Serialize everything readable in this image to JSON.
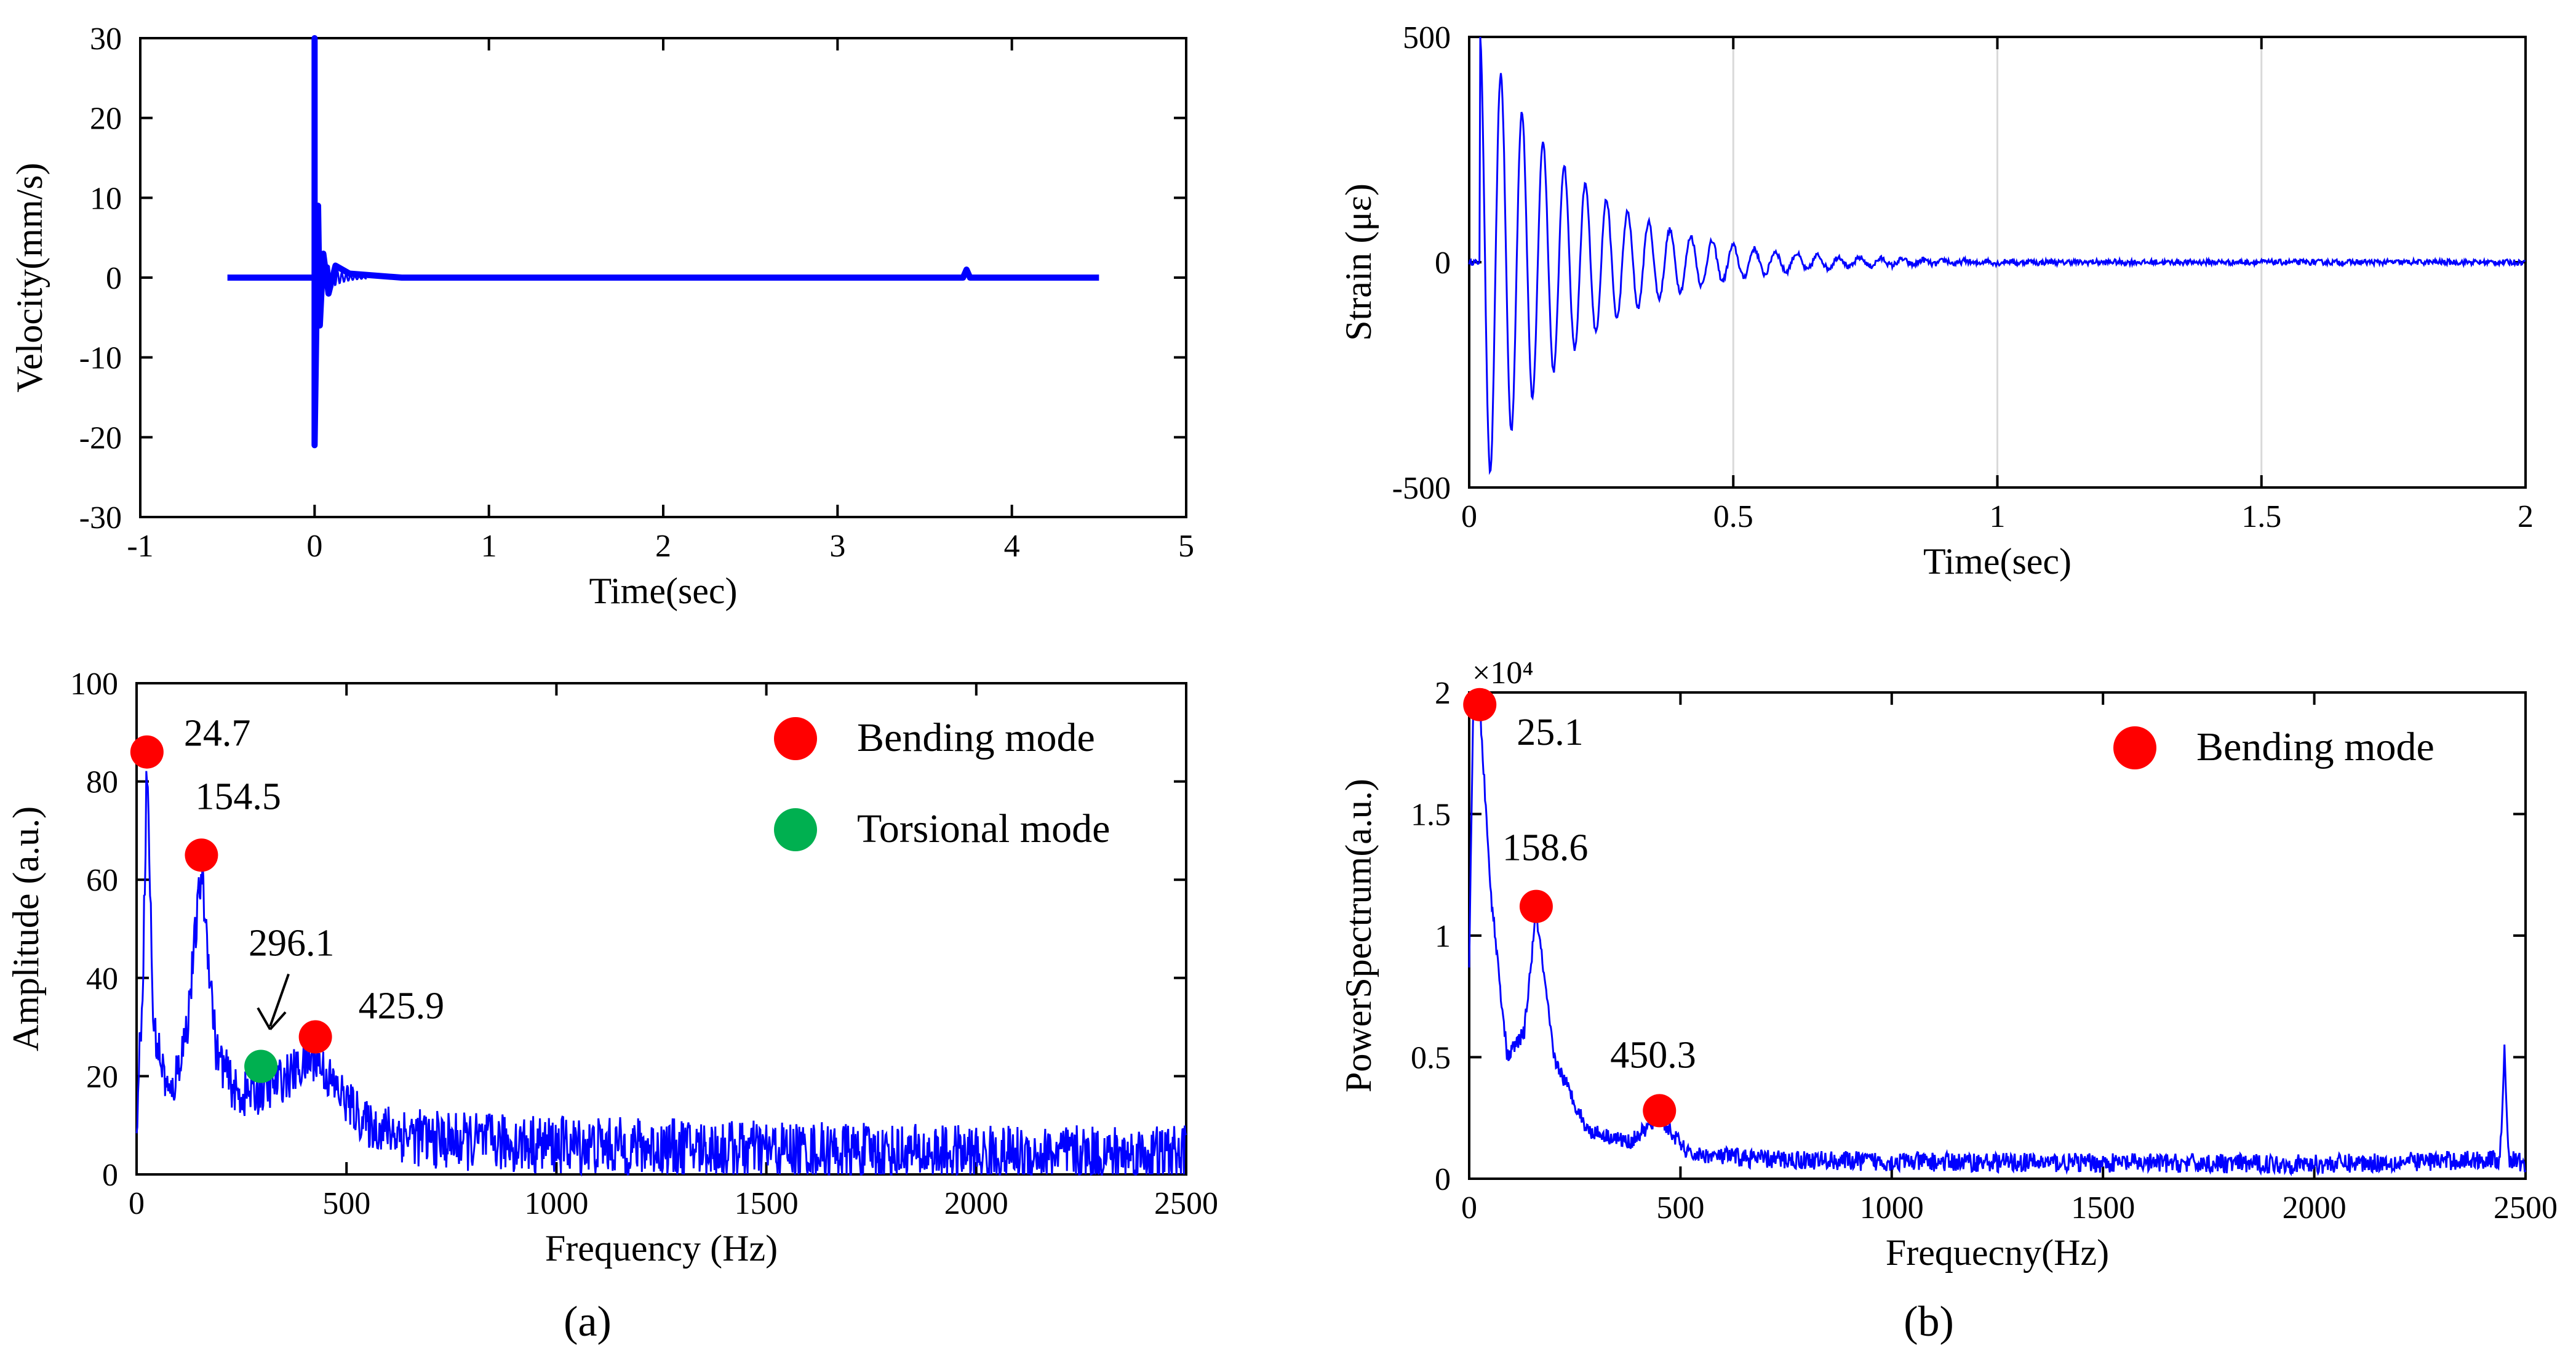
{
  "colors": {
    "series": "#0000ff",
    "bending": "#ff0000",
    "torsional": "#00b050",
    "axis": "#000000",
    "grid": "#d9d9d9"
  },
  "captions": {
    "a": "(a)",
    "b": "(b)"
  },
  "chart_data": [
    {
      "id": "velocity",
      "type": "line",
      "title": "",
      "xlabel": "Time(sec)",
      "ylabel": "Velocity(mm/s)",
      "xlim": [
        -1,
        5
      ],
      "ylim": [
        -30,
        30
      ],
      "xticks": [
        -1,
        0,
        1,
        2,
        3,
        4,
        5
      ],
      "yticks": [
        -30,
        -20,
        -10,
        0,
        10,
        20,
        30
      ],
      "grid": false,
      "series": [
        {
          "x": [
            -0.5,
            0.0,
            0.0,
            0.0,
            0.02,
            0.03,
            0.05,
            0.08,
            0.12,
            0.2,
            0.5,
            3.72,
            3.74,
            3.76,
            4.5
          ],
          "y": [
            0,
            0,
            30,
            -21,
            9,
            -6,
            3,
            -2,
            1.5,
            0.5,
            0,
            0,
            1,
            0,
            0
          ]
        }
      ]
    },
    {
      "id": "strain",
      "type": "line",
      "title": "",
      "xlabel": "Time(sec)",
      "ylabel": "Strain (με)",
      "xlim": [
        0,
        2
      ],
      "ylim": [
        -500,
        500
      ],
      "xticks": [
        0,
        0.5,
        1,
        1.5,
        2
      ],
      "xticklabels": [
        "0",
        "0.5",
        "1",
        "1.5",
        "2"
      ],
      "yticks": [
        -500,
        0,
        500
      ],
      "grid": true,
      "damped_oscillation": {
        "amplitude": 520,
        "frequency_hz": 25,
        "decay_per_sec": 5.5,
        "start": 0.02,
        "end": 2
      }
    },
    {
      "id": "amplitude_spectrum",
      "type": "line",
      "title": "",
      "xlabel": "Frequency (Hz)",
      "ylabel": "Amplitude (a.u.)",
      "xlim": [
        0,
        2500
      ],
      "ylim": [
        0,
        100
      ],
      "xticks": [
        0,
        500,
        1000,
        1500,
        2000,
        2500
      ],
      "yticks": [
        0,
        20,
        40,
        60,
        80,
        100
      ],
      "grid": false,
      "legend": {
        "placement": "top-right",
        "entries": [
          {
            "label": "Bending mode",
            "color": "#ff0000"
          },
          {
            "label": "Torsional mode",
            "color": "#00b050"
          }
        ]
      },
      "envelope": {
        "x": [
          0,
          15,
          24.7,
          40,
          80,
          120,
          154.5,
          190,
          240,
          296.1,
          360,
          425.9,
          470,
          550,
          700,
          1000,
          1500,
          2000,
          2500
        ],
        "y": [
          10,
          40,
          85,
          30,
          15,
          30,
          62,
          25,
          16,
          17,
          20,
          24,
          18,
          10,
          7,
          6,
          5,
          4,
          4
        ]
      },
      "peaks": [
        {
          "freq": 24.7,
          "value": 86,
          "label": "24.7",
          "mode": "bending"
        },
        {
          "freq": 154.5,
          "value": 65,
          "label": "154.5",
          "mode": "bending"
        },
        {
          "freq": 296.1,
          "value": 22,
          "label": "296.1",
          "mode": "torsional"
        },
        {
          "freq": 425.9,
          "value": 28,
          "label": "425.9",
          "mode": "bending"
        }
      ]
    },
    {
      "id": "power_spectrum",
      "type": "line",
      "title": "",
      "xlabel": "Frequecny(Hz)",
      "ylabel": "PowerSpectrum(a.u.)",
      "xlim": [
        0,
        2500
      ],
      "ylim": [
        0,
        2
      ],
      "y_exponent": "×10⁴",
      "xticks": [
        0,
        500,
        1000,
        1500,
        2000,
        2500
      ],
      "yticks": [
        0,
        0.5,
        1,
        1.5,
        2
      ],
      "yticklabels": [
        "0",
        "0.5",
        "1",
        "1.5",
        "2"
      ],
      "grid": false,
      "legend": {
        "placement": "top-right",
        "entries": [
          {
            "label": "Bending mode",
            "color": "#ff0000"
          }
        ]
      },
      "envelope": {
        "x": [
          0,
          10,
          25.1,
          50,
          90,
          130,
          158.6,
          200,
          280,
          380,
          450.3,
          520,
          700,
          1000,
          2000,
          2440,
          2450,
          2460,
          2500
        ],
        "y": [
          0.9,
          2.0,
          1.95,
          1.2,
          0.5,
          0.6,
          1.1,
          0.5,
          0.2,
          0.15,
          0.25,
          0.1,
          0.08,
          0.07,
          0.06,
          0.08,
          0.55,
          0.08,
          0.06
        ]
      },
      "peaks": [
        {
          "freq": 25.1,
          "value": 1.95,
          "label": "25.1",
          "mode": "bending"
        },
        {
          "freq": 158.6,
          "value": 1.12,
          "label": "158.6",
          "mode": "bending"
        },
        {
          "freq": 450.3,
          "value": 0.28,
          "label": "450.3",
          "mode": "bending"
        }
      ]
    }
  ]
}
